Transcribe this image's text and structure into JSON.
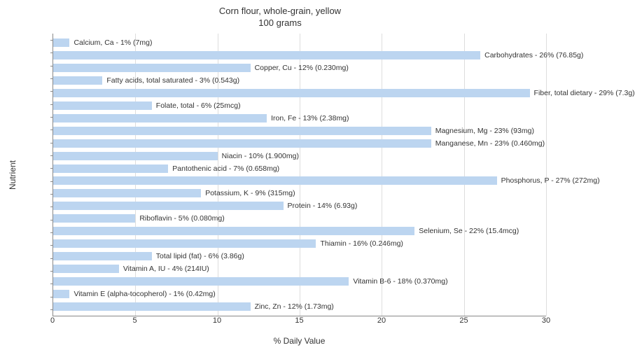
{
  "title_line1": "Corn flour, whole-grain, yellow",
  "title_line2": "100 grams",
  "x_axis_label": "% Daily Value",
  "y_axis_label": "Nutrient",
  "x_max": 30,
  "x_ticks": [
    0,
    5,
    10,
    15,
    20,
    25,
    30
  ],
  "bar_color": "#bcd5f0",
  "grid_color": "#dddddd",
  "axis_color": "#888888",
  "text_color": "#333333",
  "background_color": "#ffffff",
  "label_fontsize": 10.5,
  "axis_fontsize": 11,
  "title_fontsize": 13,
  "nutrients": [
    {
      "label": "Calcium, Ca - 1% (7mg)",
      "value": 1
    },
    {
      "label": "Carbohydrates - 26% (76.85g)",
      "value": 26
    },
    {
      "label": "Copper, Cu - 12% (0.230mg)",
      "value": 12
    },
    {
      "label": "Fatty acids, total saturated - 3% (0.543g)",
      "value": 3
    },
    {
      "label": "Fiber, total dietary - 29% (7.3g)",
      "value": 29
    },
    {
      "label": "Folate, total - 6% (25mcg)",
      "value": 6
    },
    {
      "label": "Iron, Fe - 13% (2.38mg)",
      "value": 13
    },
    {
      "label": "Magnesium, Mg - 23% (93mg)",
      "value": 23
    },
    {
      "label": "Manganese, Mn - 23% (0.460mg)",
      "value": 23
    },
    {
      "label": "Niacin - 10% (1.900mg)",
      "value": 10
    },
    {
      "label": "Pantothenic acid - 7% (0.658mg)",
      "value": 7
    },
    {
      "label": "Phosphorus, P - 27% (272mg)",
      "value": 27
    },
    {
      "label": "Potassium, K - 9% (315mg)",
      "value": 9
    },
    {
      "label": "Protein - 14% (6.93g)",
      "value": 14
    },
    {
      "label": "Riboflavin - 5% (0.080mg)",
      "value": 5
    },
    {
      "label": "Selenium, Se - 22% (15.4mcg)",
      "value": 22
    },
    {
      "label": "Thiamin - 16% (0.246mg)",
      "value": 16
    },
    {
      "label": "Total lipid (fat) - 6% (3.86g)",
      "value": 6
    },
    {
      "label": "Vitamin A, IU - 4% (214IU)",
      "value": 4
    },
    {
      "label": "Vitamin B-6 - 18% (0.370mg)",
      "value": 18
    },
    {
      "label": "Vitamin E (alpha-tocopherol) - 1% (0.42mg)",
      "value": 1
    },
    {
      "label": "Zinc, Zn - 12% (1.73mg)",
      "value": 12
    }
  ]
}
